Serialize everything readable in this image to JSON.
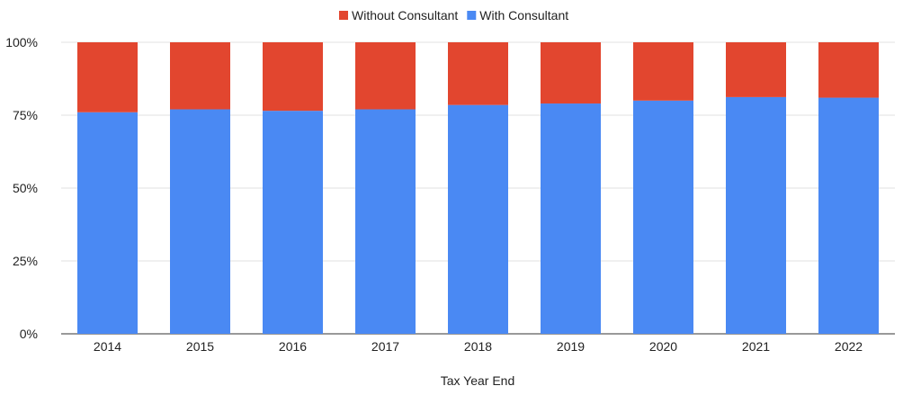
{
  "chart_data": {
    "type": "bar",
    "stacked": true,
    "percent_stacked": true,
    "title": "",
    "xlabel": "Tax Year End",
    "ylabel": "",
    "ylim": [
      0,
      100
    ],
    "yticks": [
      "0%",
      "25%",
      "50%",
      "75%",
      "100%"
    ],
    "grid": true,
    "legend_position": "top",
    "categories": [
      "2014",
      "2015",
      "2016",
      "2017",
      "2018",
      "2019",
      "2020",
      "2021",
      "2022"
    ],
    "series": [
      {
        "name": "With Consultant",
        "color": "#4a89f3",
        "values": [
          76,
          77,
          76.5,
          77,
          78.5,
          79,
          80,
          81.2,
          81
        ]
      },
      {
        "name": "Without Consultant",
        "color": "#e2462f",
        "values": [
          24,
          23,
          23.5,
          23,
          21.5,
          21,
          20,
          18.8,
          19
        ]
      }
    ],
    "legend_order": [
      1,
      0
    ]
  }
}
